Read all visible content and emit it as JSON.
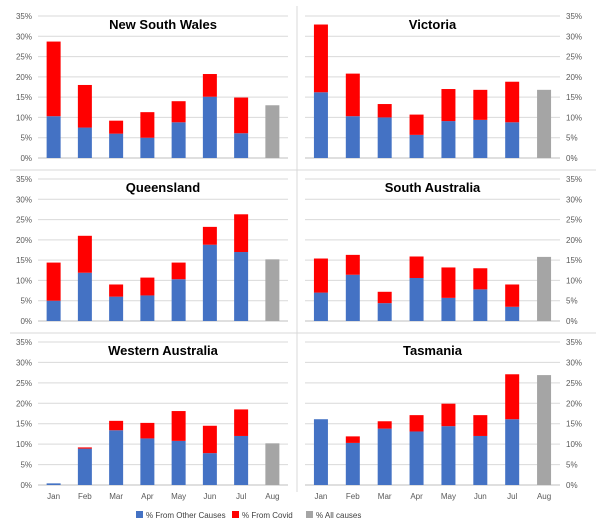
{
  "chart_data": {
    "type": "bar",
    "stacked": true,
    "months": [
      "Jan",
      "Feb",
      "Mar",
      "Apr",
      "May",
      "Jun",
      "Jul",
      "Aug"
    ],
    "y_ticks": [
      "0%",
      "5%",
      "10%",
      "15%",
      "20%",
      "25%",
      "30%",
      "35%"
    ],
    "ylim": [
      0,
      35
    ],
    "grid": true,
    "colors": {
      "other": "#4472C4",
      "covid": "#FF0000",
      "all": "#A5A5A5",
      "grid": "#D9D9D9",
      "axis": "#BFBFBF"
    },
    "legend": {
      "position": "bottom",
      "entries": [
        "% From Other Causes",
        "% From Covid",
        "% All causes"
      ]
    },
    "panels": [
      {
        "title": "New South Wales",
        "other": [
          10.3,
          7.5,
          6.0,
          5.0,
          8.8,
          15.1,
          6.1,
          null
        ],
        "covid": [
          18.4,
          10.5,
          3.2,
          6.3,
          5.2,
          5.6,
          8.8,
          null
        ],
        "all": 13.0
      },
      {
        "title": "Victoria",
        "other": [
          16.2,
          10.3,
          10.0,
          5.7,
          9.1,
          9.4,
          8.8,
          null
        ],
        "covid": [
          16.7,
          10.5,
          3.3,
          5.0,
          7.9,
          7.4,
          10.0,
          null
        ],
        "all": 16.8
      },
      {
        "title": "Queensland",
        "other": [
          5.0,
          11.9,
          6.0,
          6.3,
          10.3,
          18.8,
          17.0,
          null
        ],
        "covid": [
          9.4,
          9.1,
          3.0,
          4.4,
          4.1,
          4.4,
          9.3,
          null
        ],
        "all": 15.2
      },
      {
        "title": "South Australia",
        "other": [
          7.0,
          11.4,
          4.4,
          10.6,
          5.7,
          7.8,
          3.5,
          null
        ],
        "covid": [
          8.4,
          4.9,
          2.8,
          5.3,
          7.5,
          5.2,
          5.5,
          null
        ],
        "all": 15.8
      },
      {
        "title": "Western Australia",
        "other": [
          0.4,
          8.9,
          13.4,
          11.4,
          10.8,
          7.8,
          12.0,
          null
        ],
        "covid": [
          0.0,
          0.3,
          2.3,
          3.8,
          7.3,
          6.7,
          6.5,
          null
        ],
        "all": 10.2
      },
      {
        "title": "Tasmania",
        "other": [
          16.1,
          10.3,
          13.8,
          13.1,
          14.4,
          12.0,
          16.1,
          null
        ],
        "covid": [
          0.0,
          1.6,
          1.8,
          4.0,
          5.5,
          5.1,
          11.0,
          null
        ],
        "all": 26.9
      }
    ]
  }
}
